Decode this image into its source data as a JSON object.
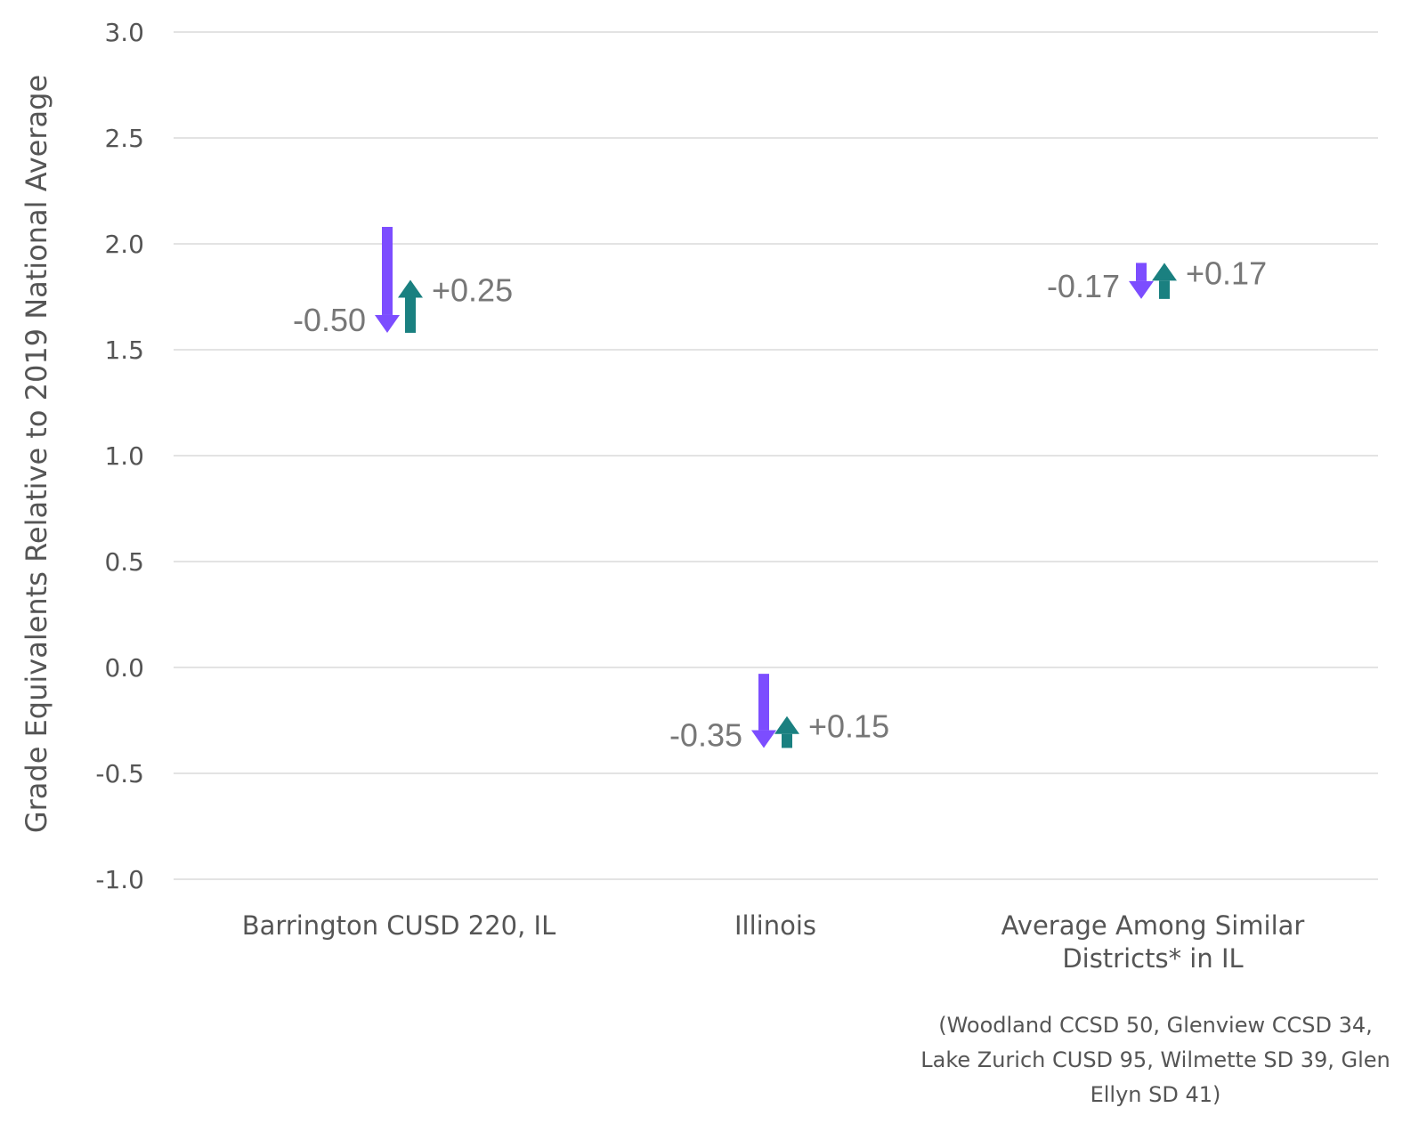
{
  "chart_data": {
    "type": "arrow",
    "title": "",
    "ylabel": "Grade Equivalents Relative to 2019 National Average",
    "xlabel": "",
    "ylim": [
      -1.0,
      3.0
    ],
    "yticks": [
      3.0,
      2.5,
      2.0,
      1.5,
      1.0,
      0.5,
      0.0,
      -0.5,
      -1.0
    ],
    "ytick_labels": [
      "3.0",
      "2.5",
      "2.0",
      "1.5",
      "1.0",
      "0.5",
      "0.0",
      "-0.5",
      "-1.0"
    ],
    "grid": true,
    "colors": {
      "decline": "#7c4dff",
      "recovery": "#1a8080"
    },
    "categories": [
      {
        "label_lines": [
          "Barrington CUSD 220, IL"
        ],
        "start": 2.08,
        "decline": -0.5,
        "decline_label": "-0.50",
        "recovery": 0.25,
        "recovery_label": "+0.25"
      },
      {
        "label_lines": [
          "Illinois"
        ],
        "start": -0.03,
        "decline": -0.35,
        "decline_label": "-0.35",
        "recovery": 0.15,
        "recovery_label": "+0.15"
      },
      {
        "label_lines": [
          "Average Among Similar",
          "Districts* in IL"
        ],
        "start": 1.91,
        "decline": -0.17,
        "decline_label": "-0.17",
        "recovery": 0.17,
        "recovery_label": "+0.17"
      }
    ],
    "footnote_lines": [
      "(Woodland CCSD 50, Glenview CCSD 34,",
      "Lake Zurich CUSD 95, Wilmette SD 39, Glen",
      "Ellyn SD 41)"
    ]
  }
}
